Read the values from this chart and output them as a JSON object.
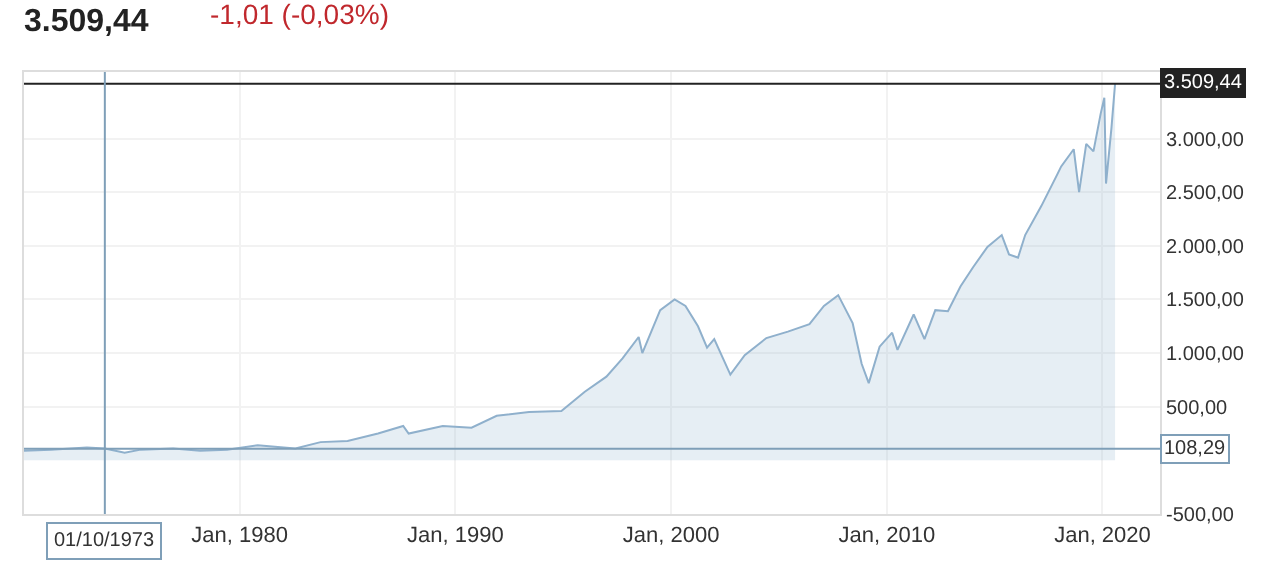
{
  "chart_data": {
    "type": "area",
    "title": "3.509,44",
    "subtitle": "-1,01 (-0,03%)",
    "x": [
      "1970-01",
      "1971-04",
      "1972-12",
      "1973-10",
      "1974-09",
      "1975-06",
      "1976-12",
      "1978-03",
      "1979-06",
      "1980-11",
      "1982-08",
      "1983-10",
      "1985-01",
      "1986-06",
      "1987-08",
      "1987-11",
      "1989-06",
      "1990-10",
      "1991-12",
      "1993-06",
      "1994-12",
      "1996-01",
      "1997-01",
      "1997-10",
      "1998-07",
      "1998-09",
      "1999-07",
      "2000-03",
      "2000-09",
      "2001-04",
      "2001-09",
      "2002-01",
      "2002-10",
      "2003-06",
      "2004-06",
      "2005-06",
      "2006-06",
      "2007-02",
      "2007-10",
      "2008-06",
      "2008-11",
      "2009-03",
      "2009-09",
      "2010-04",
      "2010-07",
      "2011-04",
      "2011-10",
      "2012-04",
      "2012-11",
      "2013-06",
      "2014-01",
      "2014-09",
      "2015-05",
      "2015-09",
      "2016-02",
      "2016-06",
      "2017-03",
      "2017-12",
      "2018-02",
      "2018-09",
      "2018-12",
      "2019-04",
      "2019-08",
      "2019-12",
      "2020-02",
      "2020-03",
      "2020-06",
      "2020-08"
    ],
    "series": [
      {
        "color": "#8fb0cc",
        "values": [
          90,
          100,
          120,
          110,
          70,
          100,
          110,
          90,
          100,
          140,
          110,
          170,
          180,
          250,
          320,
          250,
          320,
          305,
          415,
          450,
          460,
          640,
          780,
          950,
          1150,
          1000,
          1400,
          1500,
          1440,
          1250,
          1050,
          1130,
          800,
          980,
          1140,
          1200,
          1270,
          1440,
          1540,
          1280,
          900,
          720,
          1060,
          1190,
          1030,
          1360,
          1130,
          1400,
          1390,
          1620,
          1800,
          1990,
          2100,
          1920,
          1890,
          2100,
          2370,
          2670,
          2740,
          2900,
          2500,
          2950,
          2880,
          3230,
          3380,
          2580,
          3100,
          3509.44
        ]
      }
    ],
    "xlim": [
      "1970-01-01",
      "2022-09-01"
    ],
    "xticks": [
      {
        "value": "1980-01-01",
        "label": "Jan, 1980"
      },
      {
        "value": "1990-01-01",
        "label": "Jan, 1990"
      },
      {
        "value": "2000-01-01",
        "label": "Jan, 2000"
      },
      {
        "value": "2010-01-01",
        "label": "Jan, 2010"
      },
      {
        "value": "2020-01-01",
        "label": "Jan, 2020"
      }
    ],
    "ylim": [
      -500,
      3620
    ],
    "yticks": [
      {
        "value": -500,
        "label": "-500,00"
      },
      {
        "value": 500,
        "label": "500,00"
      },
      {
        "value": 1000,
        "label": "1.000,00"
      },
      {
        "value": 1500,
        "label": "1.500,00"
      },
      {
        "value": 2000,
        "label": "2.000,00"
      },
      {
        "value": 2500,
        "label": "2.500,00"
      },
      {
        "value": 3000,
        "label": "3.000,00"
      }
    ],
    "grid": true,
    "ref_lines": [
      {
        "axis": "y",
        "value": 3509.44,
        "label": "3.509,44",
        "color": "#222222"
      },
      {
        "axis": "y",
        "value": 108.29,
        "label": "108,29",
        "color": "#7f9fb8"
      },
      {
        "axis": "x",
        "value": "1973-10-01",
        "label": "01/10/1973",
        "color": "#7f9fb8"
      }
    ]
  }
}
